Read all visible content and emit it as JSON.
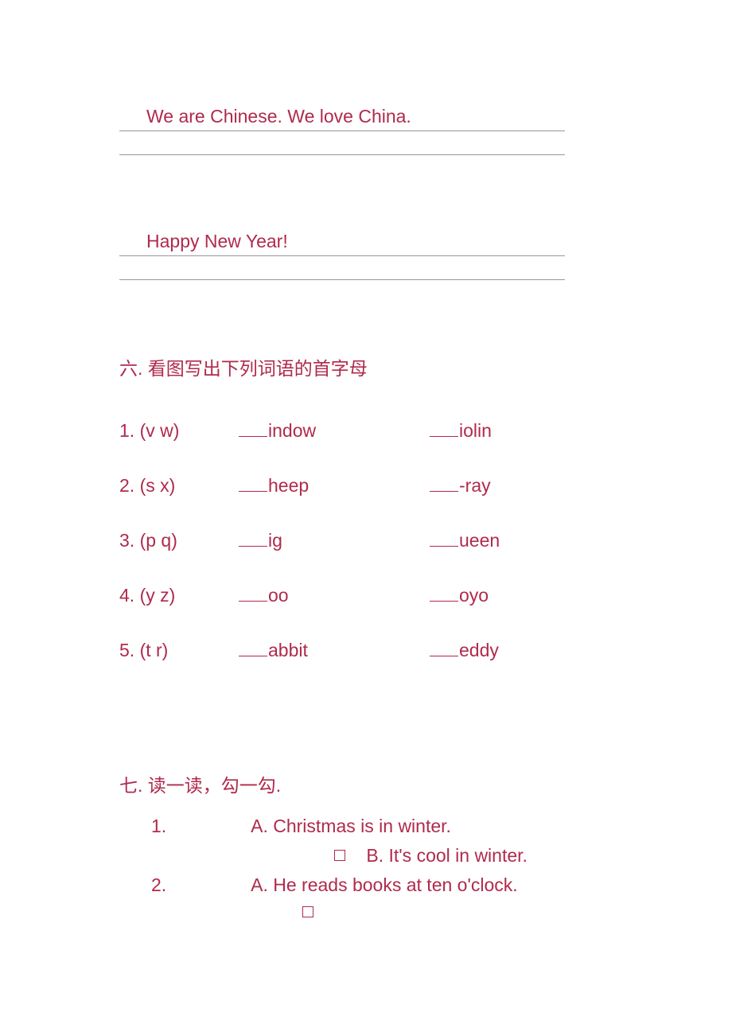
{
  "text_color": "#b02a4c",
  "background_color": "#ffffff",
  "underline_color": "#999999",
  "font_family": "Microsoft YaHei",
  "body_fontsize": 23,
  "lines": {
    "line1": "We are Chinese.    We love China.",
    "line2": "Happy New Year!"
  },
  "section6": {
    "title": "六. 看图写出下列词语的首字母",
    "items": [
      {
        "num": "1.",
        "letters": "(v   w)",
        "word1_suffix": "indow",
        "word2_suffix": "iolin"
      },
      {
        "num": "2.",
        "letters": "(s    x)",
        "word1_suffix": "heep",
        "word2_suffix": "-ray"
      },
      {
        "num": "3.",
        "letters": "(p    q)",
        "word1_suffix": "ig",
        "word2_suffix": "ueen"
      },
      {
        "num": "4.",
        "letters": "(y    z)",
        "word1_suffix": "oo",
        "word2_suffix": "oyo"
      },
      {
        "num": "5.",
        "letters": "(t    r)",
        "word1_suffix": "abbit",
        "word2_suffix": "eddy"
      }
    ]
  },
  "section7": {
    "title": "七. 读一读，勾一勾.",
    "questions": [
      {
        "num": "1.",
        "optA": "A. Christmas is in winter.",
        "optB": "B. It's cool in winter."
      },
      {
        "num": "2.",
        "optA": "A. He reads books at ten o'clock."
      }
    ]
  }
}
